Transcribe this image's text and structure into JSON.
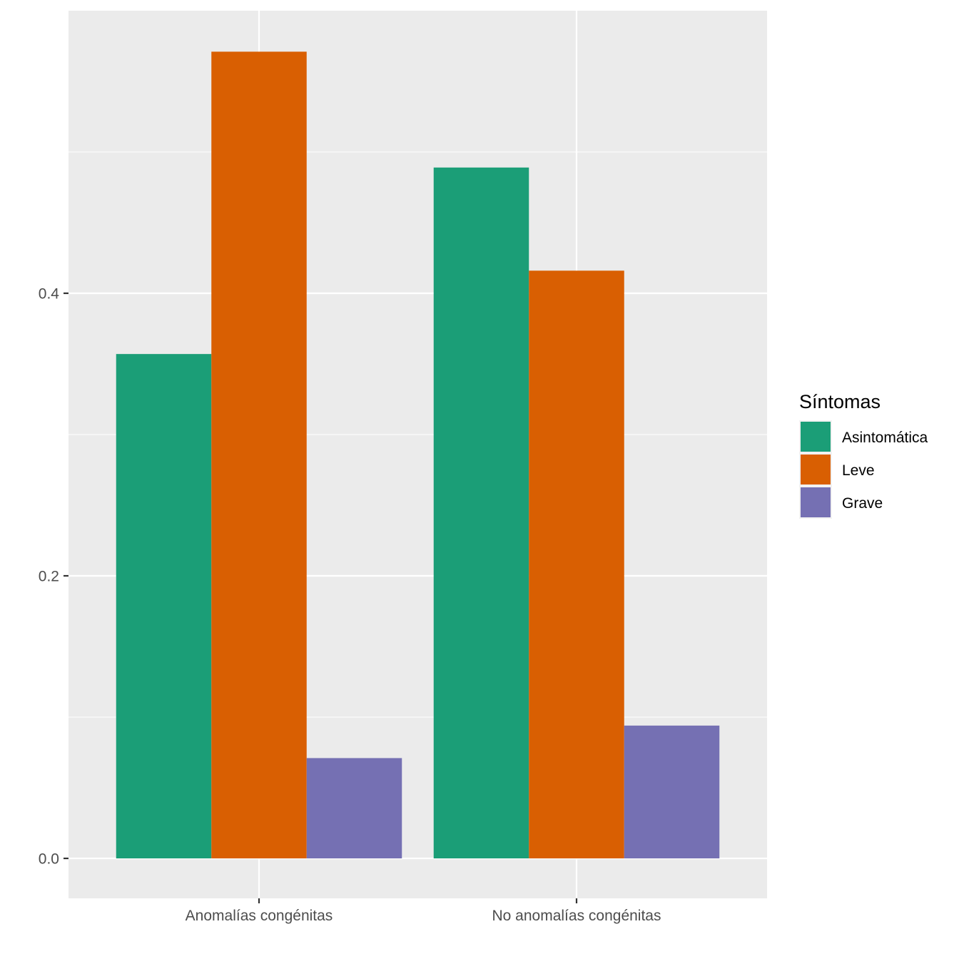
{
  "chart_data": {
    "type": "bar",
    "title": "",
    "xlabel": "",
    "ylabel": "",
    "categories": [
      "Anomalías congénitas",
      "No anomalías congénitas"
    ],
    "series": [
      {
        "name": "Asintomática",
        "color": "#1B9E77",
        "values": [
          0.357,
          0.489
        ]
      },
      {
        "name": "Leve",
        "color": "#D95F02",
        "values": [
          0.571,
          0.416
        ]
      },
      {
        "name": "Grave",
        "color": "#7570B3",
        "values": [
          0.071,
          0.094
        ]
      }
    ],
    "ylim": [
      -0.028,
      0.6
    ],
    "y_ticks": [
      0.0,
      0.2,
      0.4
    ],
    "y_tick_labels": [
      "0.0",
      "0.2",
      "0.4"
    ],
    "y_minor_gridlines": [
      0.1,
      0.3,
      0.5
    ],
    "grid": true,
    "panel_background": "#EBEBEB",
    "gridline_color": "#FFFFFF",
    "legend": {
      "title": "Síntomas",
      "position": "right"
    }
  }
}
